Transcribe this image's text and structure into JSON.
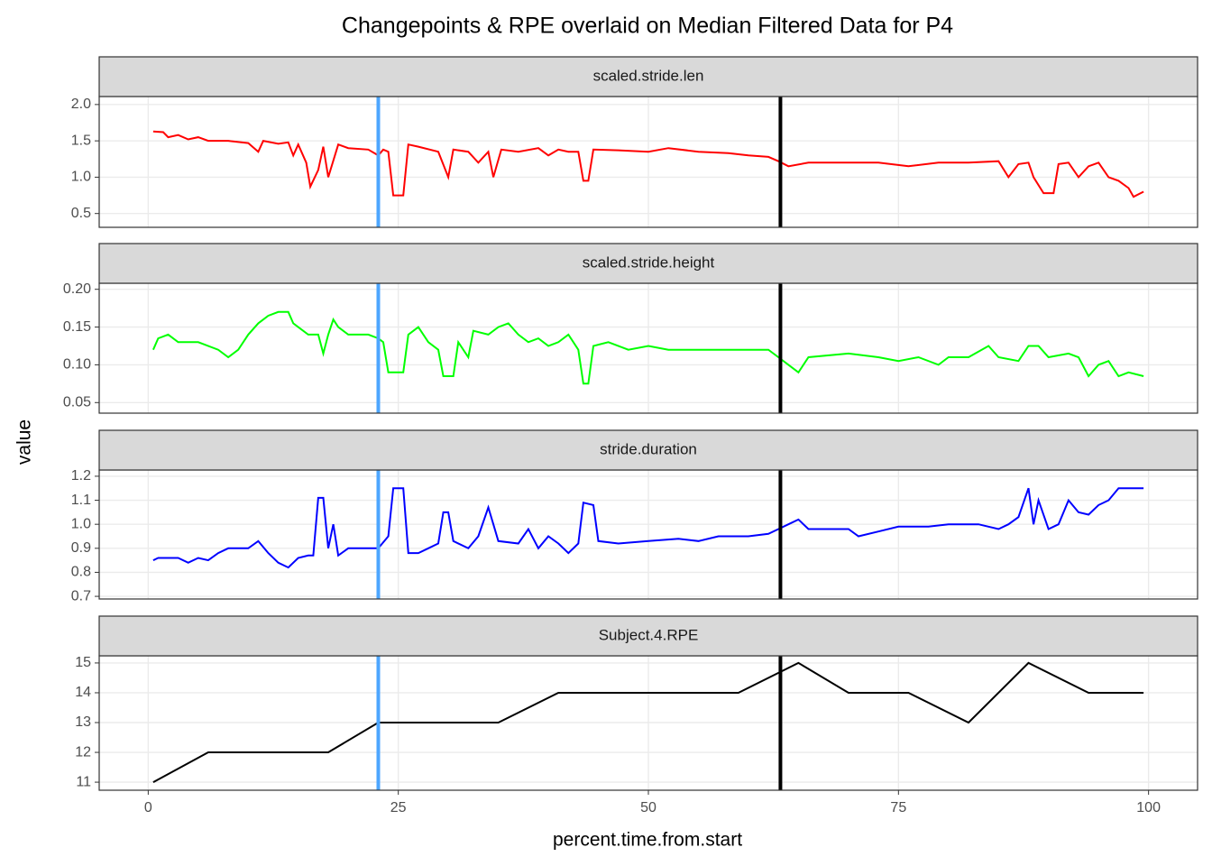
{
  "title": "Changepoints & RPE overlaid on Median Filtered Data for P4",
  "xlabel": "percent.time.from.start",
  "ylabel": "value",
  "changepoints": [
    {
      "value": 23,
      "color": "#4da6ff"
    },
    {
      "value": 63.2,
      "color": "#000000"
    }
  ],
  "chart_data": [
    {
      "type": "line",
      "title": "scaled.stride.len",
      "ylim": [
        0.31,
        2.11
      ],
      "yticks": [
        {
          "value": 0.5,
          "label": "0.5"
        },
        {
          "value": 1.0,
          "label": "1.0"
        },
        {
          "value": 1.5,
          "label": "1.5"
        },
        {
          "value": 2.0,
          "label": "2.0"
        }
      ],
      "x": [
        0.5,
        1.5,
        2,
        3,
        4,
        5,
        6,
        8,
        10,
        11,
        11.5,
        13,
        14,
        14.5,
        15,
        15.8,
        16.2,
        17,
        17.5,
        18,
        19,
        20,
        22,
        23,
        23.5,
        24,
        24.5,
        25.5,
        26,
        27,
        29,
        30,
        30.5,
        32,
        33,
        34,
        34.5,
        35.3,
        37,
        39,
        40,
        41,
        42,
        43,
        43.5,
        44,
        44.5,
        47,
        50,
        52,
        55,
        58,
        60,
        62,
        63,
        64,
        66,
        70,
        73,
        76,
        79,
        82,
        85,
        86,
        87,
        88,
        88.5,
        89.5,
        90.5,
        91,
        92,
        93,
        94,
        95,
        96,
        97,
        98,
        98.5,
        99.5
      ],
      "series": [
        {
          "name": "scaled.stride.len",
          "color": "#ff0000",
          "values": [
            1.63,
            1.62,
            1.55,
            1.58,
            1.52,
            1.55,
            1.5,
            1.5,
            1.47,
            1.35,
            1.5,
            1.46,
            1.48,
            1.3,
            1.45,
            1.2,
            0.87,
            1.1,
            1.42,
            1.0,
            1.45,
            1.4,
            1.38,
            1.3,
            1.38,
            1.35,
            0.75,
            0.75,
            1.45,
            1.42,
            1.35,
            1.0,
            1.38,
            1.35,
            1.2,
            1.35,
            1.0,
            1.38,
            1.35,
            1.4,
            1.3,
            1.38,
            1.35,
            1.35,
            0.95,
            0.95,
            1.38,
            1.37,
            1.35,
            1.4,
            1.35,
            1.33,
            1.3,
            1.28,
            1.22,
            1.15,
            1.2,
            1.2,
            1.2,
            1.15,
            1.2,
            1.2,
            1.22,
            1.0,
            1.18,
            1.2,
            1.0,
            0.78,
            0.78,
            1.18,
            1.2,
            1.0,
            1.15,
            1.2,
            1.0,
            0.95,
            0.85,
            0.73,
            0.8
          ]
        }
      ]
    },
    {
      "type": "line",
      "title": "scaled.stride.height",
      "ylim": [
        0.036,
        0.208
      ],
      "yticks": [
        {
          "value": 0.05,
          "label": "0.05"
        },
        {
          "value": 0.1,
          "label": "0.10"
        },
        {
          "value": 0.15,
          "label": "0.15"
        },
        {
          "value": 0.2,
          "label": "0.20"
        }
      ],
      "x": [
        0.5,
        1,
        2,
        3,
        5,
        7,
        8,
        9,
        10,
        11,
        12,
        13,
        14,
        14.5,
        15,
        16,
        17,
        17.5,
        18,
        18.5,
        19,
        20,
        22,
        23,
        23.5,
        24,
        25.5,
        26,
        27,
        28,
        29,
        29.5,
        30.5,
        31,
        32,
        32.5,
        34,
        35,
        36,
        37,
        38,
        39,
        40,
        41,
        42,
        43,
        43.5,
        44,
        44.5,
        46,
        48,
        50,
        52,
        55,
        58,
        60,
        62,
        63,
        64,
        65,
        66,
        70,
        73,
        75,
        77,
        79,
        80,
        82,
        84,
        85,
        87,
        88,
        89,
        90,
        92,
        93,
        94,
        95,
        96,
        97,
        98,
        99.5
      ],
      "series": [
        {
          "name": "scaled.stride.height",
          "color": "#00ff00",
          "values": [
            0.12,
            0.135,
            0.14,
            0.13,
            0.13,
            0.12,
            0.11,
            0.12,
            0.14,
            0.155,
            0.165,
            0.17,
            0.17,
            0.155,
            0.15,
            0.14,
            0.14,
            0.115,
            0.14,
            0.16,
            0.15,
            0.14,
            0.14,
            0.135,
            0.13,
            0.09,
            0.09,
            0.14,
            0.15,
            0.13,
            0.12,
            0.085,
            0.085,
            0.13,
            0.11,
            0.145,
            0.14,
            0.15,
            0.155,
            0.14,
            0.13,
            0.135,
            0.125,
            0.13,
            0.14,
            0.12,
            0.075,
            0.075,
            0.125,
            0.13,
            0.12,
            0.125,
            0.12,
            0.12,
            0.12,
            0.12,
            0.12,
            0.11,
            0.1,
            0.09,
            0.11,
            0.115,
            0.11,
            0.105,
            0.11,
            0.1,
            0.11,
            0.11,
            0.125,
            0.11,
            0.105,
            0.125,
            0.125,
            0.11,
            0.115,
            0.11,
            0.085,
            0.1,
            0.105,
            0.085,
            0.09,
            0.085
          ]
        }
      ]
    },
    {
      "type": "line",
      "title": "stride.duration",
      "ylim": [
        0.689,
        1.226
      ],
      "yticks": [
        {
          "value": 0.7,
          "label": "0.7"
        },
        {
          "value": 0.8,
          "label": "0.8"
        },
        {
          "value": 0.9,
          "label": "0.9"
        },
        {
          "value": 1.0,
          "label": "1.0"
        },
        {
          "value": 1.1,
          "label": "1.1"
        },
        {
          "value": 1.2,
          "label": "1.2"
        }
      ],
      "x": [
        0.5,
        1,
        3,
        4,
        5,
        6,
        7,
        8,
        10,
        11,
        12,
        13,
        14,
        15,
        16,
        16.5,
        17,
        17.5,
        18,
        18.5,
        19,
        20,
        22,
        23,
        24,
        24.5,
        25.5,
        26,
        27,
        28,
        29,
        29.5,
        30,
        30.5,
        32,
        33,
        34,
        34.5,
        35,
        37,
        38,
        39,
        40,
        41,
        42,
        43,
        43.5,
        44.5,
        45,
        47,
        50,
        53,
        55,
        57,
        60,
        62,
        63,
        64,
        65,
        66,
        70,
        71,
        73,
        75,
        78,
        80,
        83,
        85,
        86,
        87,
        88,
        88.5,
        89,
        90,
        91,
        92,
        93,
        94,
        95,
        96,
        97,
        99.5
      ],
      "series": [
        {
          "name": "stride.duration",
          "color": "#0000ff",
          "values": [
            0.85,
            0.86,
            0.86,
            0.84,
            0.86,
            0.85,
            0.88,
            0.9,
            0.9,
            0.93,
            0.88,
            0.84,
            0.82,
            0.86,
            0.87,
            0.87,
            1.11,
            1.11,
            0.9,
            1.0,
            0.87,
            0.9,
            0.9,
            0.9,
            0.95,
            1.15,
            1.15,
            0.88,
            0.88,
            0.9,
            0.92,
            1.05,
            1.05,
            0.93,
            0.9,
            0.95,
            1.07,
            1.0,
            0.93,
            0.92,
            0.98,
            0.9,
            0.95,
            0.92,
            0.88,
            0.92,
            1.09,
            1.08,
            0.93,
            0.92,
            0.93,
            0.94,
            0.93,
            0.95,
            0.95,
            0.96,
            0.98,
            1.0,
            1.02,
            0.98,
            0.98,
            0.95,
            0.97,
            0.99,
            0.99,
            1.0,
            1.0,
            0.98,
            1.0,
            1.03,
            1.15,
            1.0,
            1.1,
            0.98,
            1.0,
            1.1,
            1.05,
            1.04,
            1.08,
            1.1,
            1.15,
            1.15
          ]
        }
      ]
    },
    {
      "type": "line",
      "title": "Subject.4.RPE",
      "ylim": [
        10.73,
        15.24
      ],
      "yticks": [
        11,
        12,
        13,
        14,
        15
      ],
      "xlim": [
        -4.9,
        104.9
      ],
      "xticks": [
        0,
        25,
        50,
        75,
        100
      ],
      "x": [
        0.5,
        6,
        18,
        23,
        35,
        41,
        59,
        65,
        70,
        76,
        82,
        88,
        94,
        99.5
      ],
      "series": [
        {
          "name": "Subject.4.RPE",
          "color": "#000000",
          "values": [
            11,
            12,
            12,
            13,
            13,
            14,
            14,
            15,
            14,
            14,
            13,
            15,
            14,
            14
          ]
        }
      ]
    }
  ]
}
